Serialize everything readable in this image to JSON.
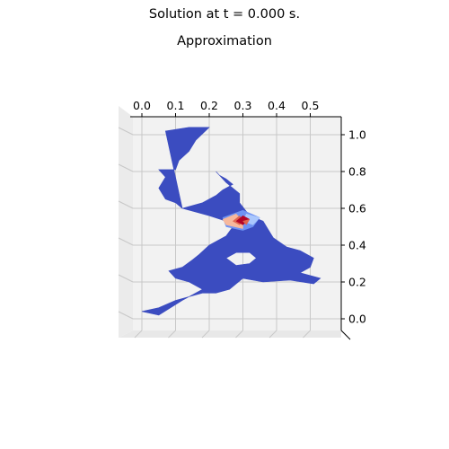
{
  "figure": {
    "suptitle": "Solution at t = 0.000 s.",
    "title": "Approximation"
  },
  "chart_data": {
    "type": "surface",
    "title": "Approximation",
    "xlabel": "",
    "ylabel": "",
    "x_ticks": [
      0.0,
      0.1,
      0.2,
      0.3,
      0.4,
      0.5
    ],
    "x_tick_labels": [
      "0.0",
      "0.1",
      "0.2",
      "0.3",
      "0.4",
      "0.5"
    ],
    "y_ticks": [
      0.0,
      0.2,
      0.4,
      0.6,
      0.8,
      1.0
    ],
    "y_tick_labels": [
      "0.0",
      "0.2",
      "0.4",
      "0.6",
      "0.8",
      "1.0"
    ],
    "xlim": [
      -0.03,
      0.57
    ],
    "ylim": [
      -0.1,
      1.07
    ],
    "colormap": "coolwarm",
    "colors": {
      "base": "#3b4cc0",
      "low": "#6f92f3",
      "mid_low": "#aac7fd",
      "mid_high": "#f7b89c",
      "high": "#e0654f",
      "peak": "#b40426",
      "pane": "#f2f2f2",
      "grid": "#c8c8c8"
    },
    "domain_outline": [
      [
        0.07,
        1.02
      ],
      [
        0.14,
        1.04
      ],
      [
        0.2,
        1.04
      ],
      [
        0.16,
        0.97
      ],
      [
        0.14,
        0.91
      ],
      [
        0.11,
        0.86
      ],
      [
        0.1,
        0.81
      ],
      [
        0.05,
        0.81
      ],
      [
        0.07,
        0.77
      ],
      [
        0.05,
        0.71
      ],
      [
        0.07,
        0.65
      ],
      [
        0.1,
        0.63
      ],
      [
        0.12,
        0.6
      ],
      [
        0.18,
        0.63
      ],
      [
        0.22,
        0.67
      ],
      [
        0.24,
        0.7
      ],
      [
        0.27,
        0.73
      ],
      [
        0.25,
        0.76
      ],
      [
        0.23,
        0.78
      ],
      [
        0.22,
        0.8
      ],
      [
        0.25,
        0.74
      ],
      [
        0.29,
        0.68
      ],
      [
        0.29,
        0.63
      ],
      [
        0.32,
        0.56
      ],
      [
        0.36,
        0.53
      ],
      [
        0.39,
        0.44
      ],
      [
        0.43,
        0.39
      ],
      [
        0.47,
        0.37
      ],
      [
        0.51,
        0.33
      ],
      [
        0.5,
        0.28
      ],
      [
        0.47,
        0.25
      ],
      [
        0.53,
        0.22
      ],
      [
        0.51,
        0.19
      ],
      [
        0.44,
        0.21
      ],
      [
        0.36,
        0.2
      ],
      [
        0.3,
        0.22
      ],
      [
        0.26,
        0.16
      ],
      [
        0.22,
        0.14
      ],
      [
        0.18,
        0.14
      ],
      [
        0.1,
        0.1
      ],
      [
        0.05,
        0.06
      ],
      [
        0.0,
        0.04
      ],
      [
        0.05,
        0.02
      ],
      [
        0.12,
        0.1
      ],
      [
        0.18,
        0.16
      ],
      [
        0.14,
        0.2
      ],
      [
        0.1,
        0.22
      ],
      [
        0.08,
        0.26
      ],
      [
        0.12,
        0.28
      ],
      [
        0.15,
        0.32
      ],
      [
        0.17,
        0.35
      ],
      [
        0.2,
        0.4
      ],
      [
        0.25,
        0.45
      ],
      [
        0.27,
        0.5
      ],
      [
        0.25,
        0.53
      ],
      [
        0.2,
        0.56
      ],
      [
        0.16,
        0.58
      ],
      [
        0.12,
        0.6
      ]
    ],
    "hole_outline": [
      [
        0.25,
        0.33
      ],
      [
        0.28,
        0.36
      ],
      [
        0.32,
        0.36
      ],
      [
        0.34,
        0.33
      ],
      [
        0.32,
        0.3
      ],
      [
        0.28,
        0.29
      ]
    ],
    "peak_center": [
      0.3,
      0.53
    ],
    "peak_patches": [
      {
        "level": "low",
        "points": [
          [
            0.3,
            0.59
          ],
          [
            0.35,
            0.55
          ],
          [
            0.33,
            0.5
          ],
          [
            0.3,
            0.48
          ],
          [
            0.25,
            0.5
          ],
          [
            0.24,
            0.55
          ]
        ]
      },
      {
        "level": "mid_low",
        "points": [
          [
            0.31,
            0.57
          ],
          [
            0.35,
            0.55
          ],
          [
            0.33,
            0.51
          ],
          [
            0.3,
            0.53
          ]
        ]
      },
      {
        "level": "mid_high",
        "points": [
          [
            0.28,
            0.57
          ],
          [
            0.3,
            0.53
          ],
          [
            0.3,
            0.49
          ],
          [
            0.25,
            0.51
          ],
          [
            0.24,
            0.54
          ]
        ]
      },
      {
        "level": "high",
        "points": [
          [
            0.29,
            0.56
          ],
          [
            0.3,
            0.53
          ],
          [
            0.29,
            0.51
          ],
          [
            0.27,
            0.53
          ]
        ]
      },
      {
        "level": "peak",
        "points": [
          [
            0.3,
            0.56
          ],
          [
            0.32,
            0.54
          ],
          [
            0.3,
            0.51
          ],
          [
            0.28,
            0.53
          ]
        ]
      },
      {
        "level": "high",
        "points": [
          [
            0.3,
            0.53
          ],
          [
            0.32,
            0.54
          ],
          [
            0.31,
            0.51
          ]
        ]
      }
    ]
  }
}
